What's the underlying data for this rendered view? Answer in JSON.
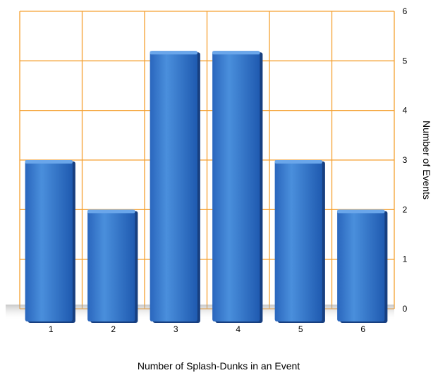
{
  "chart_data": {
    "type": "bar",
    "categories": [
      "1",
      "2",
      "3",
      "4",
      "5",
      "6"
    ],
    "values": [
      3,
      2,
      5.2,
      5.2,
      3,
      2
    ],
    "xlabel": "Number of Splash-Dunks in an Event",
    "ylabel": "Number of Events",
    "ylim": [
      0,
      6
    ],
    "yticks": [
      "0",
      "1",
      "2",
      "3",
      "4",
      "5",
      "6"
    ],
    "y_axis_side": "right",
    "grid": true,
    "legend": "none",
    "colors": {
      "bar_light": "#4a8fdc",
      "bar_dark": "#1f5ab0",
      "bar_top": "#6aa6ea",
      "grid": "#f5a030"
    }
  }
}
